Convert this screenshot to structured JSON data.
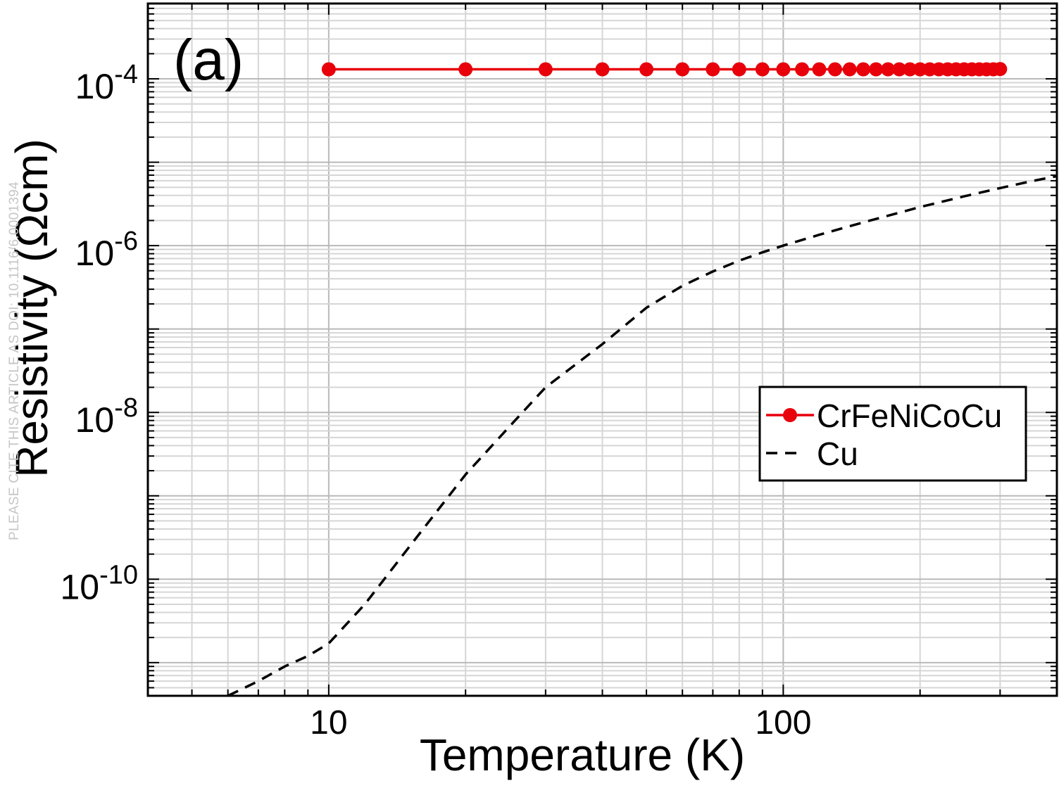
{
  "watermark": "PLEASE CITE THIS ARTICLE AS DOI: 10.1116/6.0001394",
  "chart_data": {
    "type": "line",
    "panel_label": "(a)",
    "xlabel": "Temperature (K)",
    "ylabel": "Resistivity (Ωcm)",
    "xscale": "log",
    "yscale": "log",
    "xlim": [
      4,
      400
    ],
    "ylim": [
      4e-12,
      0.0008
    ],
    "grid": true,
    "legend_position": "right-middle",
    "x_ticks": [
      {
        "value": 10,
        "label": "10"
      },
      {
        "value": 100,
        "label": "100"
      }
    ],
    "y_ticks": [
      {
        "value": 0.0001,
        "base": "10",
        "exp": "-4"
      },
      {
        "value": 1e-06,
        "base": "10",
        "exp": "-6"
      },
      {
        "value": 1e-08,
        "base": "10",
        "exp": "-8"
      },
      {
        "value": 1e-10,
        "base": "10",
        "exp": "-10"
      }
    ],
    "series": [
      {
        "name": "CrFeNiCoCu",
        "color": "#e8000b",
        "style": "solid-markers",
        "x": [
          10,
          20,
          30,
          40,
          50,
          60,
          70,
          80,
          90,
          100,
          110,
          120,
          130,
          140,
          150,
          160,
          170,
          180,
          190,
          200,
          210,
          220,
          230,
          240,
          250,
          260,
          270,
          280,
          290,
          300
        ],
        "y": [
          0.00013,
          0.00013,
          0.00013,
          0.00013,
          0.00013,
          0.00013,
          0.00013,
          0.00013,
          0.00013,
          0.00013,
          0.00013,
          0.00013,
          0.00013,
          0.00013,
          0.00013,
          0.00013,
          0.00013,
          0.00013,
          0.00013,
          0.00013,
          0.00013,
          0.00013,
          0.00013,
          0.00013,
          0.00013,
          0.00013,
          0.00013,
          0.00013,
          0.00013,
          0.000131
        ]
      },
      {
        "name": "Cu",
        "color": "#000000",
        "style": "dashed",
        "x": [
          6,
          7,
          8,
          9,
          10,
          12,
          15,
          20,
          25,
          30,
          40,
          50,
          60,
          70,
          80,
          90,
          100,
          120,
          150,
          200,
          250,
          300,
          350,
          400
        ],
        "y": [
          4e-12,
          6e-12,
          9e-12,
          1.2e-11,
          1.7e-11,
          5e-11,
          2.4e-10,
          1.8e-09,
          6.8e-09,
          2e-08,
          6.6e-08,
          1.8e-07,
          3.3e-07,
          4.9e-07,
          6.6e-07,
          8.3e-07,
          1e-06,
          1.35e-06,
          1.9e-06,
          2.9e-06,
          3.9e-06,
          4.9e-06,
          5.9e-06,
          6.8e-06
        ]
      }
    ]
  }
}
